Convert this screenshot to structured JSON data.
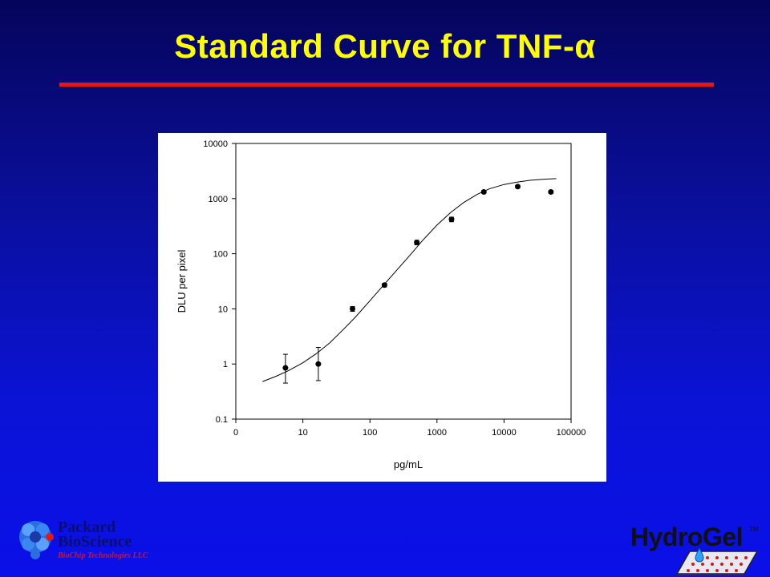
{
  "slide": {
    "title": "Standard Curve for TNF-α"
  },
  "logos": {
    "left": {
      "line1": "Packard",
      "line2": "BioScience",
      "line3": "BioChip Technologies LLC"
    },
    "right": {
      "name": "HydroGel",
      "tm": "TM"
    }
  },
  "chart_data": {
    "type": "scatter",
    "title": "",
    "xlabel": "pg/mL",
    "ylabel": "DLU per pixel",
    "x_scale": "log",
    "y_scale": "log",
    "xlim": [
      1,
      100000
    ],
    "ylim": [
      0.1,
      10000
    ],
    "x_ticks": [
      {
        "v": 1,
        "label": "0"
      },
      {
        "v": 10,
        "label": "10"
      },
      {
        "v": 100,
        "label": "100"
      },
      {
        "v": 1000,
        "label": "1000"
      },
      {
        "v": 10000,
        "label": "10000"
      },
      {
        "v": 100000,
        "label": "100000"
      }
    ],
    "y_ticks": [
      {
        "v": 0.1,
        "label": "0.1"
      },
      {
        "v": 1,
        "label": "1"
      },
      {
        "v": 10,
        "label": "10"
      },
      {
        "v": 100,
        "label": "100"
      },
      {
        "v": 1000,
        "label": "1000"
      },
      {
        "v": 10000,
        "label": "10000"
      }
    ],
    "points": [
      {
        "x": 5.5,
        "y": 0.85,
        "err_lo": 0.45,
        "err_hi": 1.5
      },
      {
        "x": 17,
        "y": 1.0,
        "err_lo": 0.5,
        "err_hi": 2.0
      },
      {
        "x": 55,
        "y": 10,
        "err_lo": 9,
        "err_hi": 11
      },
      {
        "x": 165,
        "y": 27,
        "err_lo": 25,
        "err_hi": 29
      },
      {
        "x": 500,
        "y": 160,
        "err_lo": 145,
        "err_hi": 175
      },
      {
        "x": 1650,
        "y": 420,
        "err_lo": 380,
        "err_hi": 460
      },
      {
        "x": 5000,
        "y": 1320,
        "err_lo": 1250,
        "err_hi": 1400
      },
      {
        "x": 16000,
        "y": 1650,
        "err_lo": 1550,
        "err_hi": 1750
      },
      {
        "x": 50000,
        "y": 1320,
        "err_lo": 1250,
        "err_hi": 1400
      }
    ],
    "fit_curve": {
      "x": [
        2.5,
        4,
        6,
        10,
        16,
        25,
        40,
        60,
        100,
        160,
        250,
        400,
        600,
        1000,
        1600,
        2500,
        4000,
        6000,
        10000,
        16000,
        25000,
        40000,
        60000
      ],
      "y": [
        0.48,
        0.6,
        0.75,
        1.05,
        1.55,
        2.4,
        4.2,
        7,
        14,
        27,
        50,
        95,
        170,
        330,
        560,
        850,
        1200,
        1500,
        1800,
        2000,
        2150,
        2250,
        2300
      ]
    },
    "grid": false,
    "legend": "none"
  }
}
